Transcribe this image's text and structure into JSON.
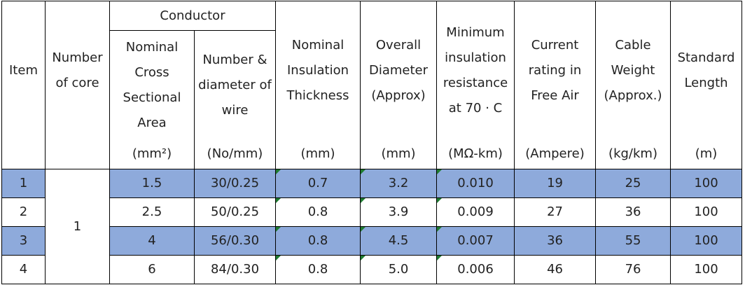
{
  "headers": {
    "item": "Item",
    "core": [
      "Number",
      "of core"
    ],
    "conductor": "Conductor",
    "area": [
      "Nominal",
      "Cross",
      "Sectional",
      "Area"
    ],
    "wire": [
      "Number &",
      "diameter of",
      "wire"
    ],
    "insulation": [
      "Nominal",
      "Insulation",
      "Thickness"
    ],
    "diameter": [
      "Overall",
      "Diameter",
      "(Approx)"
    ],
    "resistance": [
      "Minimum",
      "insulation",
      "resistance",
      "at 70 · C"
    ],
    "current": [
      "Current",
      "rating in",
      "Free Air"
    ],
    "weight": [
      "Cable",
      "Weight",
      "(Approx.)"
    ],
    "length": [
      "Standard",
      "Length"
    ]
  },
  "units": [
    "(mm²)",
    "(No/mm)",
    "(mm)",
    "(mm)",
    "(MΩ-km)",
    "(Ampere)",
    "(kg/km)",
    "(m)"
  ],
  "number_of_core": "1",
  "rows": [
    {
      "item": "1",
      "area": "1.5",
      "wire": "30/0.25",
      "insulation": "0.7",
      "diameter": "3.2",
      "resistance": "0.010",
      "current": "19",
      "weight": "25",
      "length": "100"
    },
    {
      "item": "2",
      "area": "2.5",
      "wire": "50/0.25",
      "insulation": "0.8",
      "diameter": "3.9",
      "resistance": "0.009",
      "current": "27",
      "weight": "36",
      "length": "100"
    },
    {
      "item": "3",
      "area": "4",
      "wire": "56/0.30",
      "insulation": "0.8",
      "diameter": "4.5",
      "resistance": "0.007",
      "current": "36",
      "weight": "55",
      "length": "100"
    },
    {
      "item": "4",
      "area": "6",
      "wire": "84/0.30",
      "insulation": "0.8",
      "diameter": "5.0",
      "resistance": "0.006",
      "current": "46",
      "weight": "76",
      "length": "100"
    }
  ],
  "colors": {
    "highlight_row": "#8eaadb",
    "error_tick": "#1e7b30"
  }
}
